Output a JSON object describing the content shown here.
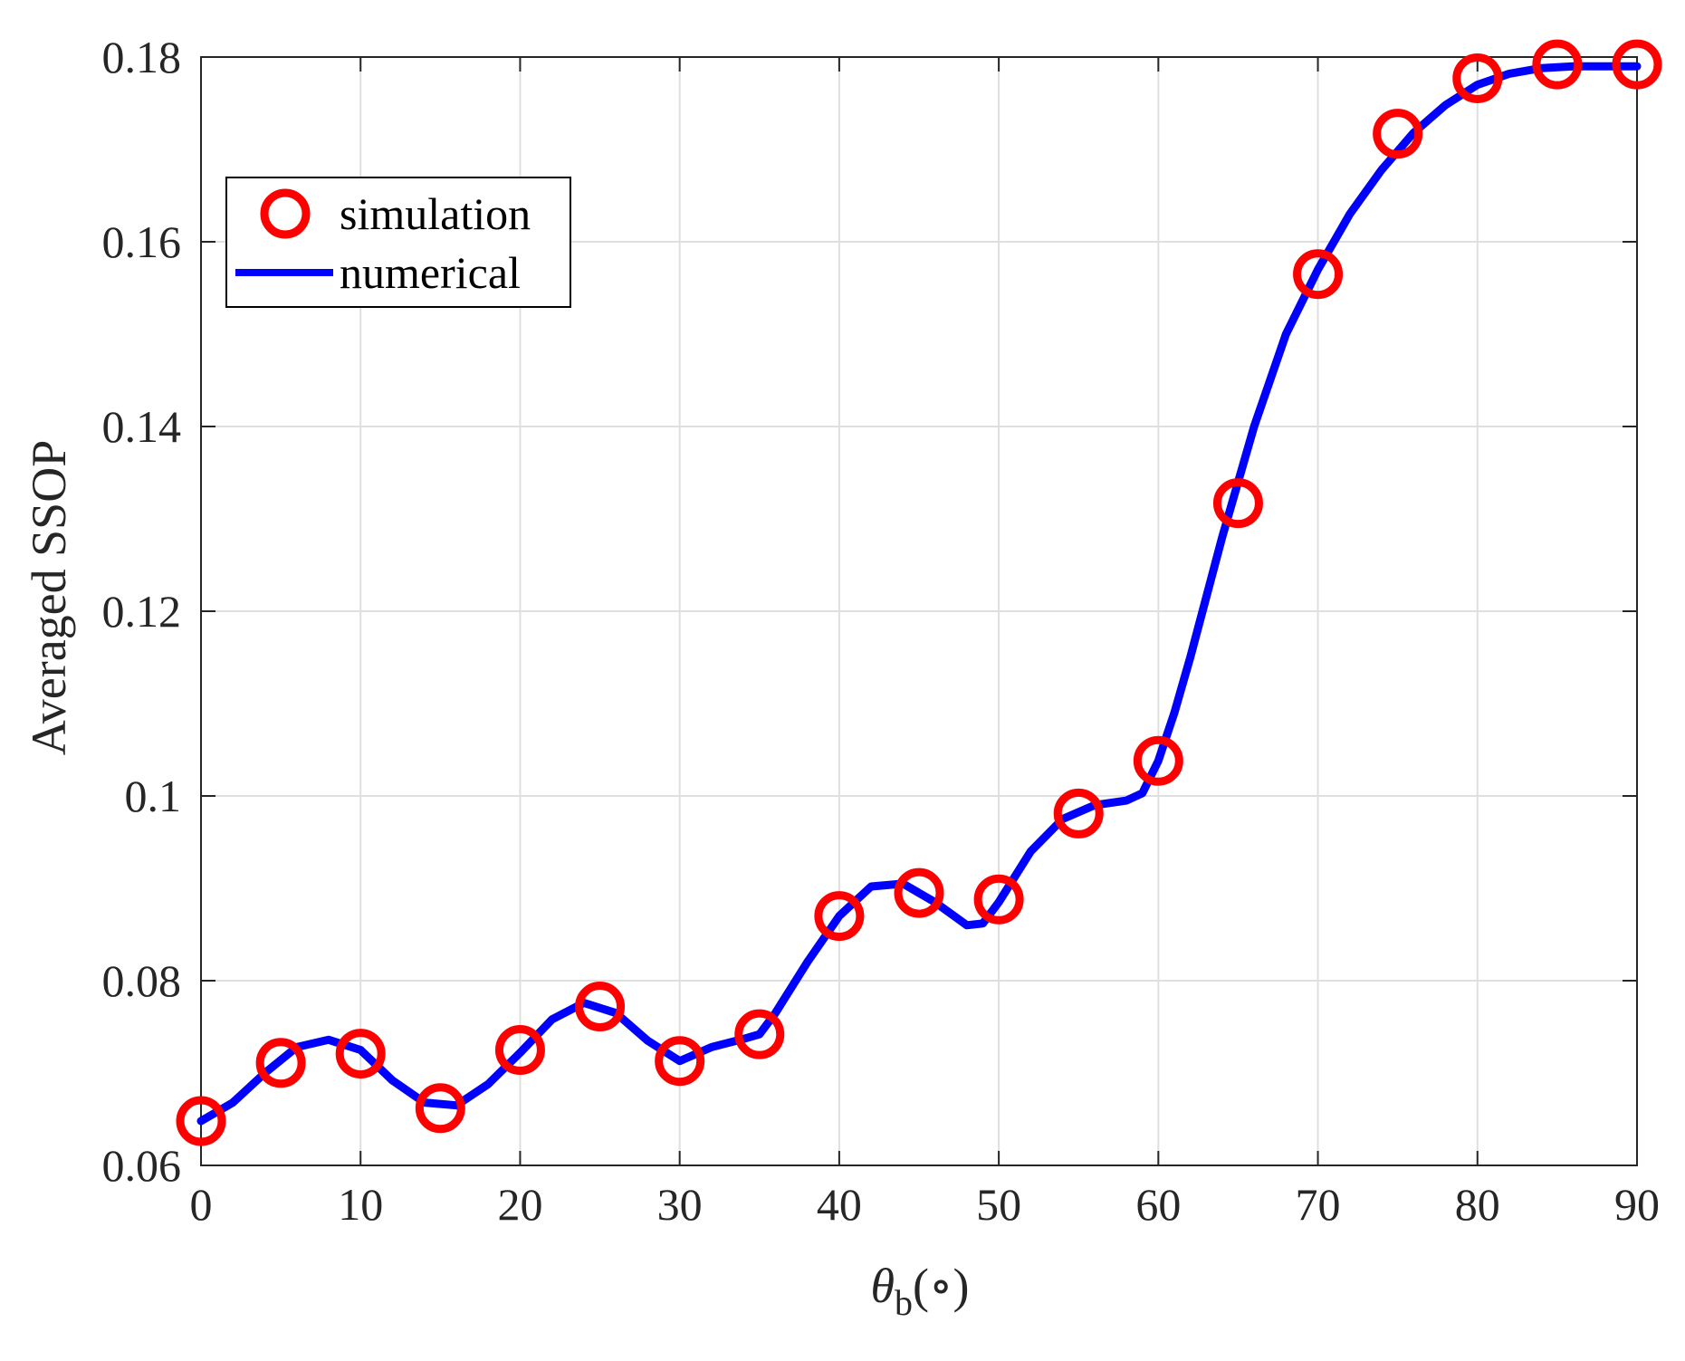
{
  "chart_data": {
    "type": "line",
    "xlabel": {
      "symbol": "θ",
      "subscript": "b",
      "unit": "(∘)"
    },
    "ylabel": "Averaged SSOP",
    "xlim": [
      0,
      90
    ],
    "ylim": [
      0.06,
      0.18
    ],
    "xticks": [
      0,
      10,
      20,
      30,
      40,
      50,
      60,
      70,
      80,
      90
    ],
    "xtick_labels": [
      "0",
      "10",
      "20",
      "30",
      "40",
      "50",
      "60",
      "70",
      "80",
      "90"
    ],
    "yticks": [
      0.06,
      0.08,
      0.1,
      0.12,
      0.14,
      0.16,
      0.18
    ],
    "ytick_labels": [
      "0.06",
      "0.08",
      "0.1",
      "0.12",
      "0.14",
      "0.16",
      "0.18"
    ],
    "grid": true,
    "legend_position": "upper-left",
    "series": [
      {
        "name": "simulation",
        "style": "markers",
        "marker": "circle",
        "color": "#ff0000",
        "x": [
          0,
          5,
          10,
          15,
          20,
          25,
          30,
          35,
          40,
          45,
          50,
          55,
          60,
          65,
          70,
          75,
          80,
          85,
          90
        ],
        "y": [
          0.0648,
          0.0711,
          0.0721,
          0.0662,
          0.0725,
          0.0772,
          0.0713,
          0.0742,
          0.087,
          0.0895,
          0.0888,
          0.0981,
          0.1038,
          0.1317,
          0.1565,
          0.1717,
          0.1777,
          0.1792,
          0.1792
        ]
      },
      {
        "name": "numerical",
        "style": "line",
        "color": "#0000ff",
        "x": [
          0,
          2,
          4,
          6,
          8,
          10,
          12,
          14,
          16,
          18,
          20,
          22,
          24,
          26,
          28,
          30,
          32,
          34,
          35,
          36,
          38,
          40,
          42,
          44,
          46,
          48,
          49,
          50,
          52,
          54,
          56,
          58,
          59,
          60,
          61,
          62,
          64,
          66,
          68,
          70,
          72,
          74,
          76,
          78,
          80,
          82,
          84,
          86,
          88,
          90
        ],
        "y": [
          0.0648,
          0.0668,
          0.07,
          0.0728,
          0.0736,
          0.0725,
          0.0692,
          0.0668,
          0.0665,
          0.0688,
          0.0722,
          0.0758,
          0.0776,
          0.0765,
          0.0735,
          0.0713,
          0.0728,
          0.0737,
          0.0742,
          0.0765,
          0.082,
          0.087,
          0.0902,
          0.0905,
          0.0885,
          0.086,
          0.0862,
          0.0885,
          0.094,
          0.0975,
          0.099,
          0.0995,
          0.1003,
          0.1038,
          0.109,
          0.115,
          0.128,
          0.14,
          0.15,
          0.157,
          0.163,
          0.1678,
          0.1718,
          0.1748,
          0.177,
          0.1782,
          0.1788,
          0.179,
          0.179,
          0.179
        ]
      }
    ]
  }
}
